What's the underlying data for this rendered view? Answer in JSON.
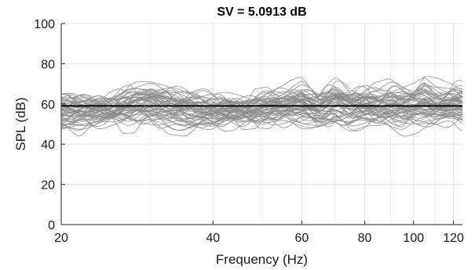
{
  "chart_data": {
    "type": "line",
    "title": "SV = 5.0913 dB",
    "xlabel": "Frequency (Hz)",
    "ylabel": "SPL (dB)",
    "xscale": "log",
    "xlim": [
      20,
      125
    ],
    "ylim": [
      0,
      100
    ],
    "xticks": [
      20,
      40,
      60,
      80,
      100,
      120
    ],
    "yticks": [
      0,
      20,
      40,
      60,
      80,
      100
    ],
    "grid": true,
    "reference_line": {
      "y": 59,
      "color": "#000000"
    },
    "colors": {
      "curves": "#8c8c8c",
      "reference": "#000000",
      "grid": "#e3e3e3",
      "axes": "#262626"
    },
    "series_note_count": 60,
    "curve_envelope": {
      "x": [
        20,
        25,
        30,
        35,
        40,
        45,
        50,
        55,
        60,
        65,
        70,
        75,
        80,
        85,
        90,
        95,
        100,
        105,
        110,
        115,
        120,
        125
      ],
      "min": [
        40,
        45,
        46,
        44,
        46,
        47,
        48,
        47,
        43,
        45,
        44,
        42,
        43,
        44,
        44,
        43,
        45,
        44,
        45,
        46,
        46,
        47
      ],
      "max": [
        65,
        66,
        74,
        70,
        68,
        66,
        68,
        70,
        74,
        68,
        73,
        70,
        72,
        71,
        73,
        72,
        72,
        78,
        74,
        72,
        73,
        72
      ],
      "mean": [
        56,
        57,
        60,
        57,
        55,
        56,
        58,
        59,
        60,
        57,
        60,
        57,
        58,
        58,
        59,
        58,
        59,
        61,
        59,
        59,
        60,
        59
      ]
    }
  }
}
